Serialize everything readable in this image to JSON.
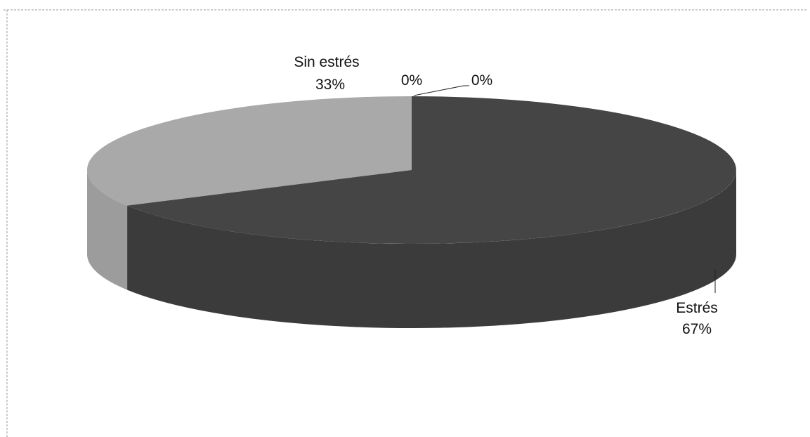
{
  "chart_data": {
    "type": "pie",
    "style": "3d",
    "slices": [
      {
        "name": "Estrés",
        "value": 67,
        "label": "67%",
        "color": "#454545"
      },
      {
        "name": "Sin estrés",
        "value": 33,
        "label": "33%",
        "color": "#a9a9a9"
      },
      {
        "name": "",
        "value": 0,
        "label": "0%"
      },
      {
        "name": "",
        "value": 0,
        "label": "0%"
      }
    ],
    "legend": "none",
    "title": ""
  }
}
